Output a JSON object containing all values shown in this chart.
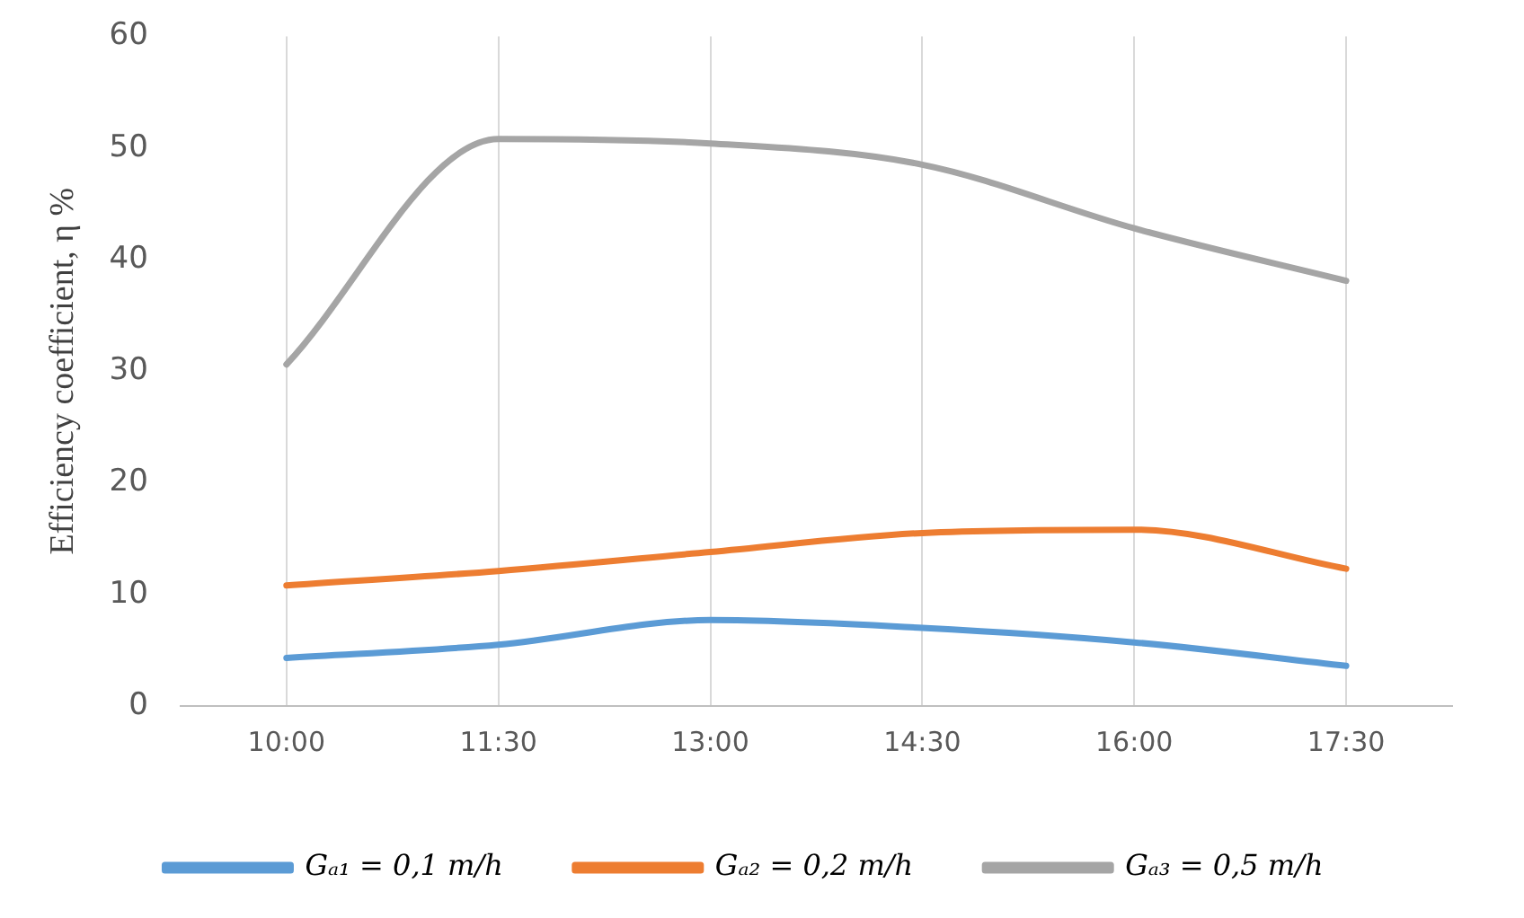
{
  "chart_data": {
    "type": "line",
    "ylabel": "Efficiency coefficient, η %",
    "categories": [
      "10:00",
      "11:30",
      "13:00",
      "14:30",
      "16:00",
      "17:30"
    ],
    "series": [
      {
        "name": "Gₐ₁ = 0,1 m/h",
        "color": "#5b9bd5",
        "values": [
          4.3,
          5.5,
          7.7,
          7.0,
          5.7,
          3.6
        ]
      },
      {
        "name": "Gₐ₂ = 0,2 m/h",
        "color": "#ed7d31",
        "values": [
          10.8,
          12.1,
          13.8,
          15.5,
          15.8,
          12.3
        ]
      },
      {
        "name": "Gₐ₃ = 0,5 m/h",
        "color": "#a5a5a5",
        "values": [
          30.6,
          50.8,
          50.4,
          48.5,
          42.8,
          38.1
        ]
      }
    ],
    "ylim": [
      0,
      60
    ],
    "yticks": [
      0,
      10,
      20,
      30,
      40,
      50,
      60
    ],
    "grid": "x",
    "legend": "bottom",
    "marker": "none",
    "line_style": "solid"
  }
}
